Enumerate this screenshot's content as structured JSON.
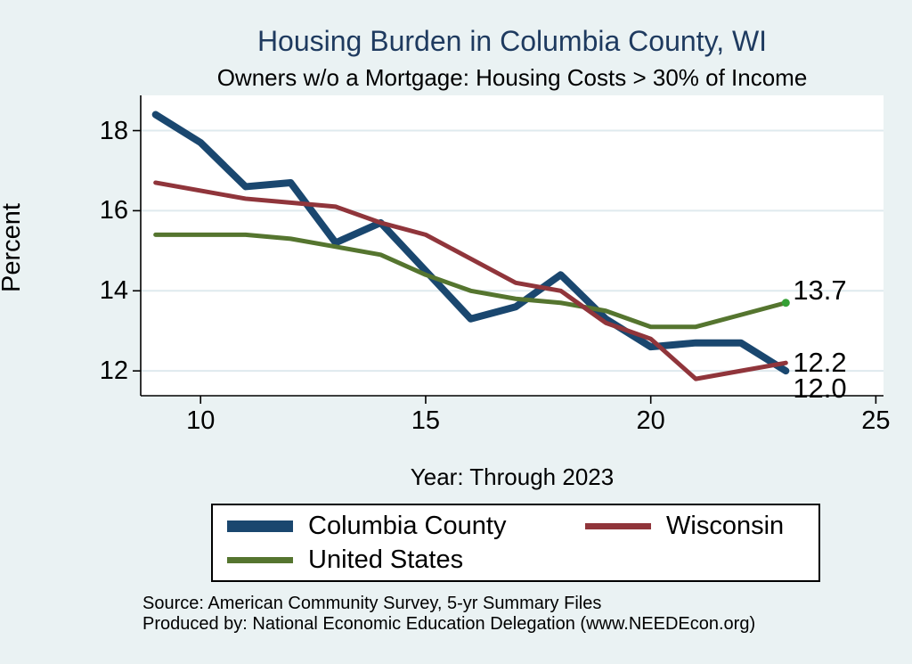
{
  "title": "Housing Burden in Columbia County, WI",
  "subtitle": "Owners w/o a Mortgage: Housing Costs > 30% of Income",
  "source": {
    "line1": "Source: American Community Survey, 5-yr Summary Files",
    "line2": "Produced by: National Economic Education Delegation (www.NEEDEcon.org)"
  },
  "colors": {
    "background": "#eaf2f3",
    "plot_background": "#ffffff",
    "title_text": "#1e3a5f",
    "gridline": "#dfeaee",
    "axis": "#000000",
    "end_dot": "#35a035"
  },
  "chart_data": {
    "type": "line",
    "title": "Housing Burden in Columbia County, WI",
    "subtitle": "Owners w/o a Mortgage: Housing Costs > 30% of Income",
    "xlabel": "Year: Through 2023",
    "ylabel": "Percent",
    "x": [
      9,
      10,
      11,
      12,
      13,
      14,
      15,
      16,
      17,
      18,
      19,
      20,
      21,
      22,
      23
    ],
    "x_ticks": [
      10,
      15,
      20,
      25
    ],
    "x_tick_labels": [
      "10",
      "15",
      "20",
      "25"
    ],
    "y_ticks": [
      12,
      14,
      16,
      18
    ],
    "y_tick_labels": [
      "12",
      "14",
      "16",
      "18"
    ],
    "xlim": [
      8.67,
      25.17
    ],
    "ylim": [
      11.38,
      18.88
    ],
    "grid": "horizontal",
    "legend_position": "bottom",
    "series": [
      {
        "name": "Columbia County",
        "color": "#1a476f",
        "line_width": 8,
        "end_label": "12.0",
        "end_dot": false,
        "values": [
          18.4,
          17.7,
          16.6,
          16.7,
          15.2,
          15.7,
          14.5,
          13.3,
          13.6,
          14.4,
          13.3,
          12.6,
          12.7,
          12.7,
          12.0
        ]
      },
      {
        "name": "Wisconsin",
        "color": "#90353b",
        "line_width": 5,
        "end_label": "12.2",
        "end_dot": false,
        "values": [
          16.7,
          16.5,
          16.3,
          16.2,
          16.1,
          15.7,
          15.4,
          14.8,
          14.2,
          14.0,
          13.2,
          12.8,
          11.8,
          12.0,
          12.2
        ]
      },
      {
        "name": "United States",
        "color": "#55752f",
        "line_width": 5,
        "end_label": "13.7",
        "end_dot": true,
        "values": [
          15.4,
          15.4,
          15.4,
          15.3,
          15.1,
          14.9,
          14.4,
          14.0,
          13.8,
          13.7,
          13.5,
          13.1,
          13.1,
          13.4,
          13.7
        ]
      }
    ]
  }
}
